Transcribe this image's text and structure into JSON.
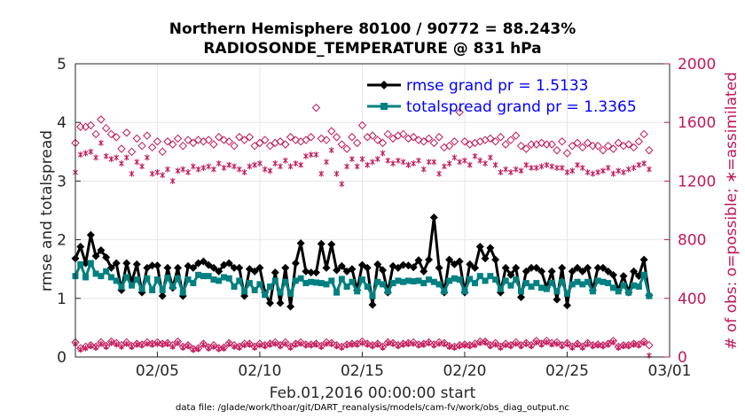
{
  "chart_data": {
    "type": "line",
    "title_line1": "Northern Hemisphere 80100 / 90772 = 88.243%",
    "title_line2": "RADIOSONDE_TEMPERATURE @ 831 hPa",
    "ylabel_left": "rmse and totalspread",
    "ylabel_right": "# of obs: o=possible; ∗=assimilated",
    "xlabel": "Feb.01,2016 00:00:00 start",
    "footer": "data file: /glade/work/thoar/git/DART_reanalysis/models/cam-fv/work/obs_diag_output.nc",
    "x_range": [
      1,
      30
    ],
    "ylim_left": [
      0,
      5
    ],
    "ylim_right": [
      0,
      2000
    ],
    "x_ticks": [
      {
        "pos": 5,
        "label": "02/05"
      },
      {
        "pos": 10,
        "label": "02/10"
      },
      {
        "pos": 15,
        "label": "02/15"
      },
      {
        "pos": 20,
        "label": "02/20"
      },
      {
        "pos": 25,
        "label": "02/25"
      },
      {
        "pos": 30,
        "label": "03/01"
      }
    ],
    "y_ticks_left": [
      "0",
      "1",
      "2",
      "3",
      "4",
      "5"
    ],
    "y_ticks_right": [
      "0",
      "400",
      "800",
      "1200",
      "1600",
      "2000"
    ],
    "x_start": 1.0,
    "x_step": 0.25,
    "series": [
      {
        "name": "rmse",
        "legend": "rmse grand pr = 1.5133",
        "color": "#000000",
        "axis": "left",
        "values": [
          1.68,
          1.88,
          1.6,
          2.08,
          1.72,
          1.82,
          1.7,
          1.52,
          1.6,
          1.14,
          1.6,
          1.28,
          1.58,
          1.1,
          1.52,
          1.56,
          1.56,
          1.04,
          1.52,
          1.18,
          1.52,
          1.04,
          1.55,
          1.52,
          1.6,
          1.63,
          1.57,
          1.52,
          1.46,
          1.57,
          1.6,
          1.52,
          1.52,
          1.04,
          1.5,
          1.46,
          1.52,
          1.1,
          0.92,
          1.44,
          0.92,
          1.52,
          0.86,
          1.6,
          1.94,
          1.46,
          1.44,
          1.44,
          1.93,
          1.52,
          1.92,
          1.48,
          1.55,
          1.46,
          1.5,
          1.14,
          1.57,
          1.52,
          0.89,
          1.58,
          1.48,
          1.1,
          1.55,
          1.52,
          1.57,
          1.56,
          1.53,
          1.65,
          1.46,
          1.66,
          2.38,
          1.52,
          1.1,
          1.66,
          1.58,
          1.63,
          1.1,
          1.58,
          1.52,
          1.88,
          1.68,
          1.86,
          1.66,
          1.1,
          1.52,
          1.4,
          1.52,
          1.02,
          1.46,
          1.52,
          1.52,
          1.46,
          1.18,
          1.46,
          0.98,
          1.52,
          0.88,
          1.46,
          1.52,
          1.46,
          1.52,
          1.14,
          1.52,
          1.52,
          1.46,
          1.4,
          1.14,
          1.38,
          1.1,
          1.46,
          1.38,
          1.66,
          1.05
        ]
      },
      {
        "name": "totalspread",
        "legend": "totalspread grand pr = 1.3365",
        "color": "#008080",
        "axis": "left",
        "values": [
          1.38,
          1.58,
          1.36,
          1.6,
          1.42,
          1.38,
          1.46,
          1.36,
          1.3,
          1.2,
          1.36,
          1.22,
          1.32,
          1.16,
          1.34,
          1.14,
          1.32,
          1.14,
          1.35,
          1.2,
          1.34,
          1.1,
          1.32,
          1.26,
          1.4,
          1.38,
          1.38,
          1.32,
          1.3,
          1.36,
          1.34,
          1.2,
          1.3,
          1.12,
          1.26,
          1.14,
          1.24,
          1.06,
          1.2,
          1.3,
          1.1,
          1.28,
          1.08,
          1.3,
          1.34,
          1.26,
          1.28,
          1.27,
          1.26,
          1.24,
          1.3,
          1.1,
          1.33,
          1.2,
          1.28,
          1.12,
          1.32,
          1.2,
          1.04,
          1.28,
          1.24,
          1.12,
          1.26,
          1.3,
          1.28,
          1.3,
          1.29,
          1.3,
          1.26,
          1.32,
          1.28,
          1.24,
          1.12,
          1.3,
          1.34,
          1.32,
          1.12,
          1.33,
          1.26,
          1.38,
          1.3,
          1.38,
          1.32,
          1.16,
          1.3,
          1.22,
          1.32,
          1.12,
          1.26,
          1.2,
          1.26,
          1.18,
          1.16,
          1.26,
          1.12,
          1.28,
          1.08,
          1.24,
          1.28,
          1.24,
          1.28,
          1.12,
          1.3,
          1.28,
          1.26,
          1.18,
          1.12,
          1.22,
          1.1,
          1.22,
          1.2,
          1.4,
          1.04
        ]
      },
      {
        "name": "obs possible",
        "color": "#c2185b",
        "axis": "right",
        "values": [
          1460,
          1570,
          1570,
          1580,
          1520,
          1620,
          1560,
          1520,
          1500,
          1420,
          1530,
          1400,
          1490,
          1440,
          1510,
          1430,
          1470,
          1400,
          1470,
          1450,
          1490,
          1440,
          1480,
          1460,
          1480,
          1470,
          1480,
          1450,
          1500,
          1480,
          1470,
          1440,
          1500,
          1480,
          1500,
          1440,
          1460,
          1480,
          1440,
          1460,
          1470,
          1450,
          1500,
          1480,
          1470,
          1480,
          1500,
          1700,
          1490,
          1480,
          1540,
          1500,
          1450,
          1420,
          1500,
          1460,
          1580,
          1500,
          1510,
          1480,
          1460,
          1520,
          1490,
          1510,
          1520,
          1490,
          1500,
          1480,
          1470,
          1490,
          1460,
          1500,
          1430,
          1440,
          1470,
          1670,
          1470,
          1450,
          1460,
          1470,
          1480,
          1490,
          1470,
          1500,
          1450,
          1480,
          1510,
          1440,
          1420,
          1450,
          1450,
          1460,
          1450,
          1450,
          1410,
          1470,
          1390,
          1440,
          1460,
          1430,
          1460,
          1440,
          1440,
          1410,
          1440,
          1420,
          1460,
          1440,
          1450,
          1430,
          1470,
          1520,
          1410
        ]
      },
      {
        "name": "obs assimilated",
        "color": "#c2185b",
        "axis": "right",
        "values": [
          1260,
          1380,
          1390,
          1400,
          1360,
          1460,
          1370,
          1350,
          1360,
          1320,
          1360,
          1250,
          1330,
          1300,
          1360,
          1250,
          1260,
          1240,
          1280,
          1200,
          1270,
          1280,
          1260,
          1300,
          1280,
          1290,
          1300,
          1280,
          1320,
          1290,
          1310,
          1300,
          1280,
          1260,
          1300,
          1310,
          1320,
          1280,
          1270,
          1320,
          1300,
          1340,
          1300,
          1320,
          1310,
          1370,
          1380,
          1380,
          1250,
          1330,
          1410,
          1250,
          1180,
          1300,
          1350,
          1300,
          1350,
          1310,
          1330,
          1350,
          1390,
          1340,
          1320,
          1340,
          1330,
          1310,
          1320,
          1340,
          1280,
          1330,
          1330,
          1250,
          1300,
          1320,
          1360,
          1330,
          1340,
          1310,
          1370,
          1340,
          1320,
          1360,
          1310,
          1260,
          1280,
          1260,
          1280,
          1270,
          1310,
          1290,
          1290,
          1300,
          1310,
          1300,
          1290,
          1290,
          1260,
          1270,
          1310,
          1290,
          1260,
          1250,
          1260,
          1270,
          1290,
          1250,
          1270,
          1260,
          1280,
          1290,
          1310,
          1320,
          1280
        ]
      },
      {
        "name": "obs possible low",
        "color": "#c2185b",
        "axis": "right",
        "values": [
          100,
          60,
          70,
          80,
          70,
          100,
          75,
          105,
          95,
          80,
          100,
          75,
          90,
          85,
          100,
          90,
          100,
          90,
          95,
          80,
          105,
          70,
          80,
          55,
          60,
          90,
          65,
          80,
          60,
          65,
          95,
          80,
          70,
          90,
          90,
          70,
          90,
          80,
          90,
          100,
          80,
          100,
          70,
          90,
          100,
          85,
          85,
          90,
          75,
          100,
          95,
          80,
          70,
          85,
          90,
          90,
          105,
          90,
          80,
          90,
          70,
          100,
          95,
          80,
          90,
          95,
          100,
          85,
          90,
          100,
          85,
          100,
          95,
          75,
          70,
          80,
          85,
          80,
          90,
          105,
          105,
          80,
          95,
          70,
          90,
          80,
          100,
          80,
          95,
          80,
          110,
          90,
          110,
          95,
          100,
          80,
          95,
          70,
          90,
          70,
          95,
          80,
          85,
          80,
          90,
          110,
          70,
          80,
          80,
          90,
          85,
          105,
          80
        ]
      },
      {
        "name": "obs assimilated low",
        "color": "#c2185b",
        "axis": "right",
        "values": [
          90,
          50,
          60,
          75,
          65,
          90,
          70,
          95,
          85,
          70,
          90,
          70,
          85,
          80,
          90,
          85,
          90,
          85,
          90,
          70,
          95,
          65,
          75,
          50,
          55,
          85,
          60,
          70,
          55,
          60,
          90,
          70,
          65,
          80,
          85,
          65,
          80,
          75,
          85,
          90,
          75,
          90,
          65,
          85,
          90,
          80,
          80,
          85,
          70,
          90,
          90,
          75,
          65,
          80,
          85,
          85,
          95,
          85,
          75,
          85,
          65,
          95,
          90,
          75,
          85,
          90,
          90,
          80,
          85,
          95,
          80,
          90,
          90,
          70,
          65,
          75,
          80,
          75,
          80,
          95,
          100,
          75,
          85,
          65,
          80,
          75,
          90,
          75,
          90,
          75,
          100,
          85,
          100,
          85,
          90,
          75,
          90,
          65,
          85,
          65,
          90,
          75,
          80,
          75,
          85,
          100,
          65,
          75,
          75,
          85,
          80,
          95,
          10
        ]
      }
    ]
  }
}
